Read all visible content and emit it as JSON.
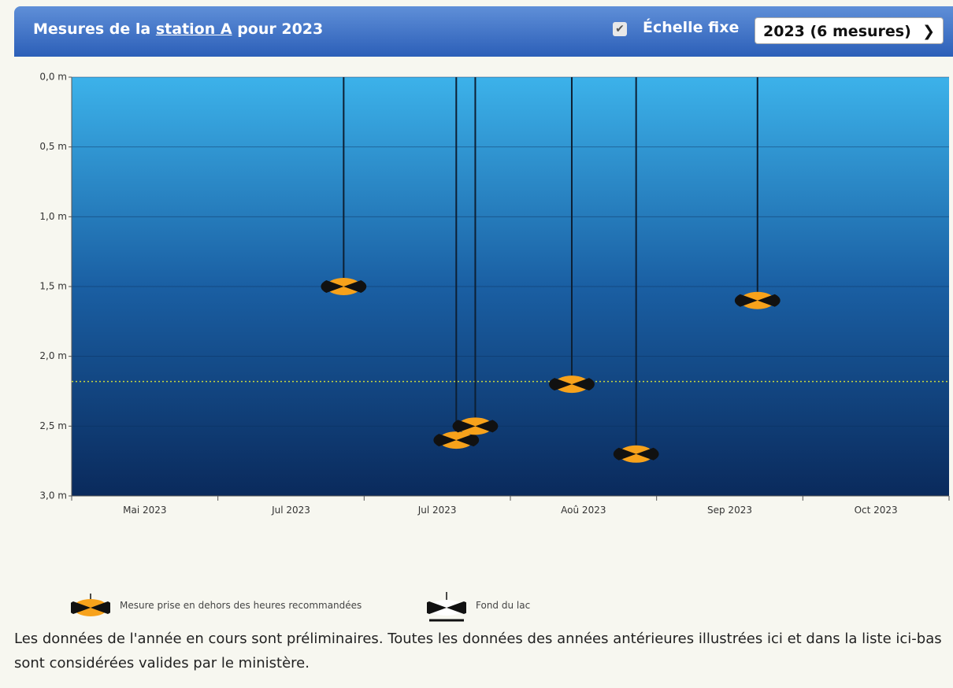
{
  "header": {
    "title_before": "Mesures de la ",
    "station_link": "station A",
    "title_after": " pour 2023",
    "checkbox_label": "Échelle fixe",
    "checked": true,
    "select": "2023 (6 mesures)"
  },
  "chart_data": {
    "type": "scatter",
    "x": [
      1.86,
      2.63,
      2.76,
      3.42,
      3.86,
      4.69
    ],
    "values": [
      1.5,
      2.6,
      2.5,
      2.2,
      2.7,
      1.6
    ],
    "xlim": [
      0,
      6
    ],
    "xticks": [
      {
        "value": 0.5,
        "label": "Mai 2023"
      },
      {
        "value": 1.5,
        "label": "Jul 2023"
      },
      {
        "value": 2.5,
        "label": "Jul 2023"
      },
      {
        "value": 3.5,
        "label": "Aoû 2023"
      },
      {
        "value": 4.5,
        "label": "Sep 2023"
      },
      {
        "value": 5.5,
        "label": "Oct 2023"
      }
    ],
    "ylim": [
      3,
      0
    ],
    "yticks": [
      {
        "value": 0,
        "label": "0,0 m"
      },
      {
        "value": 0.5,
        "label": "0,5 m"
      },
      {
        "value": 1,
        "label": "1,0 m"
      },
      {
        "value": 1.5,
        "label": "1,5 m"
      },
      {
        "value": 2,
        "label": "2,0 m"
      },
      {
        "value": 2.5,
        "label": "2,5 m"
      },
      {
        "value": 3,
        "label": "3,0 m"
      }
    ],
    "grid": true,
    "hline": {
      "value": 2.18,
      "color": "#c8d840"
    },
    "marker_colors": [
      "#f7a21b",
      "#111111"
    ]
  },
  "legend": [
    "Mesure prise en dehors des heures recommandées",
    "Fond du lac"
  ],
  "note": "Les données de l'année en cours sont préliminaires. Toutes les données des années antérieures illustrées ici et dans la liste ici-bas sont considérées valides par le ministère."
}
